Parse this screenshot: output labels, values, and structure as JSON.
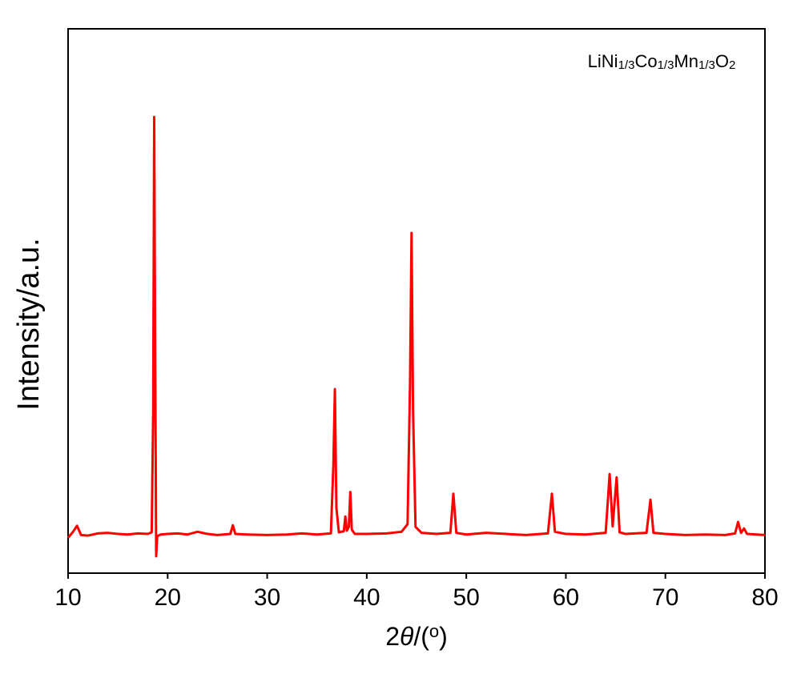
{
  "chart_data": {
    "type": "line",
    "annotation": "LiNi1/3Co1/3Mn1/3O2",
    "x_label": "2θ/(o)",
    "y_label": "Intensity/a.u.",
    "xlim": [
      10,
      80
    ],
    "xticks": [
      10,
      20,
      30,
      40,
      50,
      60,
      70,
      80
    ],
    "ylim": [
      0,
      100
    ],
    "x": [
      10,
      10.5,
      10.9,
      11.3,
      12,
      13,
      14,
      15,
      16,
      17,
      18,
      18.4,
      18.55,
      18.65,
      18.75,
      18.85,
      18.95,
      19.3,
      20,
      21,
      22,
      23,
      24,
      25,
      26.3,
      26.55,
      26.8,
      28,
      30,
      32,
      33.5,
      35,
      36.4,
      36.65,
      36.8,
      36.95,
      37.2,
      37.7,
      37.85,
      38.0,
      38.2,
      38.35,
      38.5,
      38.8,
      40,
      42,
      43.5,
      44.1,
      44.35,
      44.5,
      44.65,
      44.9,
      45.5,
      47,
      48.4,
      48.7,
      49.0,
      50,
      52,
      54,
      56,
      58.2,
      58.6,
      58.9,
      60,
      62,
      64,
      64.4,
      64.7,
      65.1,
      65.4,
      66,
      68.1,
      68.5,
      68.8,
      70,
      72,
      74,
      76,
      77.0,
      77.3,
      77.6,
      77.9,
      78.2,
      80
    ],
    "series": [
      {
        "color": "#ff0000",
        "values": [
          6.5,
          7.6,
          8.7,
          7.0,
          6.9,
          7.3,
          7.4,
          7.2,
          7.1,
          7.3,
          7.2,
          7.5,
          30,
          83.8,
          40,
          3.1,
          6.8,
          7.1,
          7.2,
          7.3,
          7.1,
          7.6,
          7.2,
          7.0,
          7.2,
          8.8,
          7.2,
          7.1,
          7.0,
          7.1,
          7.3,
          7.1,
          7.3,
          20,
          33.8,
          12,
          7.5,
          7.7,
          10.4,
          7.8,
          8.5,
          14.9,
          8,
          7.2,
          7.2,
          7.3,
          7.6,
          9,
          35,
          62.5,
          30,
          8.5,
          7.4,
          7.2,
          7.4,
          14.6,
          7.4,
          7.1,
          7.4,
          7.2,
          7.0,
          7.3,
          14.6,
          7.6,
          7.2,
          7.1,
          7.4,
          18.2,
          8.6,
          17.6,
          7.5,
          7.2,
          7.4,
          13.5,
          7.4,
          7.2,
          7.0,
          7.1,
          7.0,
          7.3,
          9.4,
          7.4,
          8.2,
          7.2,
          7.0
        ]
      }
    ]
  }
}
